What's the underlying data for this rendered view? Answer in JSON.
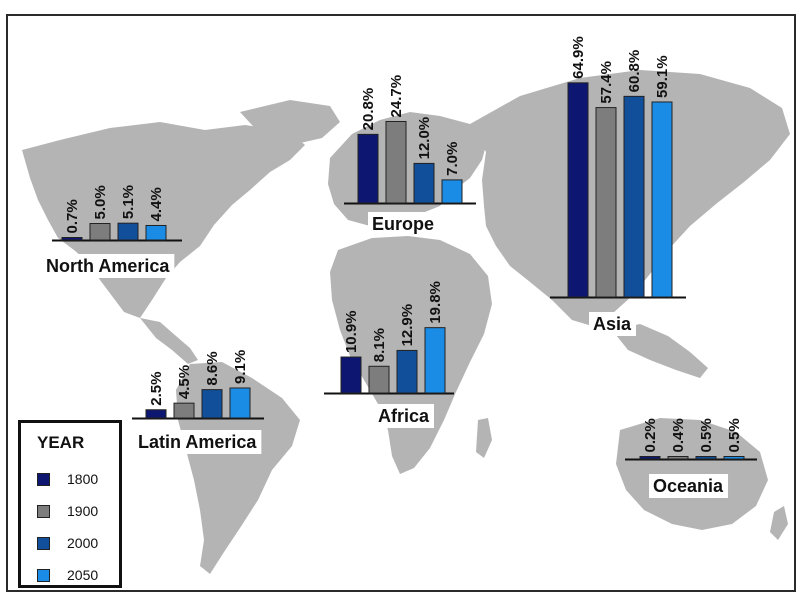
{
  "chart_data": {
    "type": "bar",
    "legend_title": "YEAR",
    "legend_position": "bottom-left",
    "series": [
      {
        "name": "1800",
        "color": "#0d1670"
      },
      {
        "name": "1900",
        "color": "#7d7d7d"
      },
      {
        "name": "2000",
        "color": "#114f9a"
      },
      {
        "name": "2050",
        "color": "#1a8ce6"
      }
    ],
    "groups": [
      {
        "name": "North America",
        "values": [
          0.7,
          5.0,
          5.1,
          4.4
        ],
        "labels": [
          "0.7%",
          "5.0%",
          "5.1%",
          "4.4%"
        ]
      },
      {
        "name": "Europe",
        "values": [
          20.8,
          24.7,
          12.0,
          7.0
        ],
        "labels": [
          "20.8%",
          "24.7%",
          "12.0%",
          "7.0%"
        ]
      },
      {
        "name": "Asia",
        "values": [
          64.9,
          57.4,
          60.8,
          59.1
        ],
        "labels": [
          "64.9%",
          "57.4%",
          "60.8%",
          "59.1%"
        ]
      },
      {
        "name": "Latin America",
        "values": [
          2.5,
          4.5,
          8.6,
          9.1
        ],
        "labels": [
          "2.5%",
          "4.5%",
          "8.6%",
          "9.1%"
        ]
      },
      {
        "name": "Africa",
        "values": [
          10.9,
          8.1,
          12.9,
          19.8
        ],
        "labels": [
          "10.9%",
          "8.1%",
          "12.9%",
          "19.8%"
        ]
      },
      {
        "name": "Oceania",
        "values": [
          0.2,
          0.4,
          0.5,
          0.5
        ],
        "labels": [
          "0.2%",
          "0.4%",
          "0.5%",
          "0.5%"
        ]
      }
    ]
  }
}
